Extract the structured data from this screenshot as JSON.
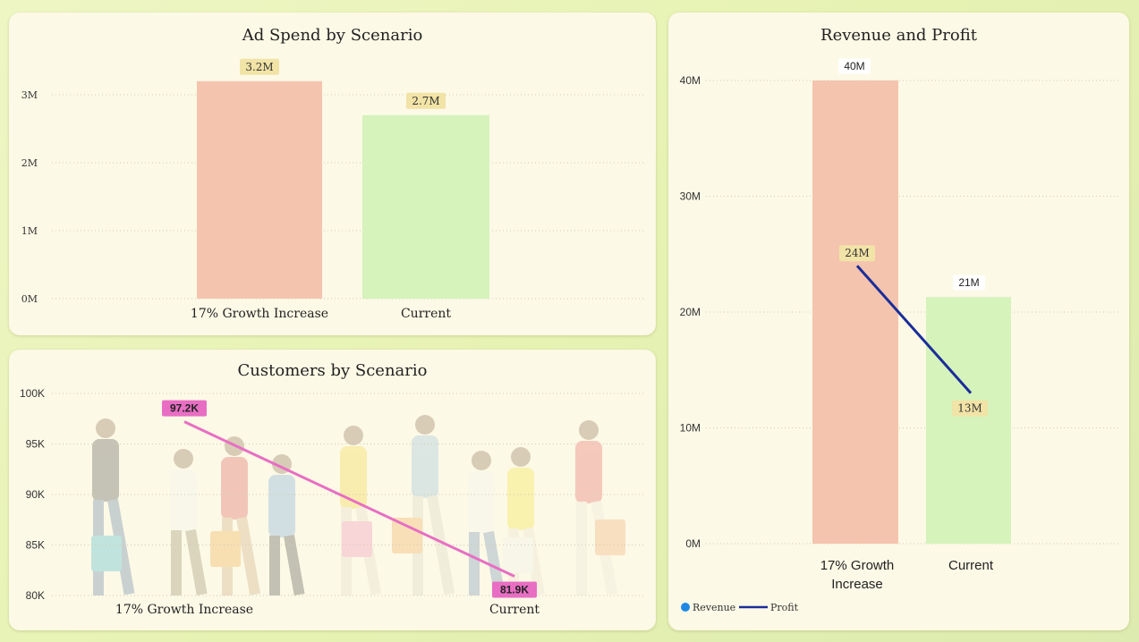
{
  "colors": {
    "bar_growth": "#f5c4ae",
    "bar_current": "#d5f3bb",
    "label_bg": "#f2e3a6",
    "customer_line": "#e86ec3",
    "profit_line": "#1a2d9a",
    "revenue_legend": "#1e88e5",
    "grid": "#cfcbb4"
  },
  "ad_spend": {
    "title": "Ad Spend by Scenario",
    "chart_data": {
      "type": "bar",
      "categories": [
        "17% Growth Increase",
        "Current"
      ],
      "values": [
        3.2,
        2.7
      ],
      "data_labels": [
        "3.2M",
        "2.7M"
      ],
      "yticks": [
        "0M",
        "1M",
        "2M",
        "3M"
      ],
      "ylim": [
        0,
        3.2
      ],
      "grid": true
    }
  },
  "customers": {
    "title": "Customers by Scenario",
    "chart_data": {
      "type": "line",
      "categories": [
        "17% Growth Increase",
        "Current"
      ],
      "values": [
        97.2,
        81.9
      ],
      "data_labels": [
        "97.2K",
        "81.9K"
      ],
      "yticks": [
        "80K",
        "85K",
        "90K",
        "95K",
        "100K"
      ],
      "ylim": [
        80,
        100
      ],
      "grid": true
    }
  },
  "revenue_profit": {
    "title": "Revenue and Profit",
    "chart_data": {
      "type": "bar",
      "categories": [
        [
          "17% Growth",
          "Increase"
        ],
        [
          "Current"
        ]
      ],
      "series": [
        {
          "name": "Revenue",
          "type": "bar",
          "values": [
            40,
            21.3
          ],
          "data_labels": [
            "40M",
            "21M"
          ]
        },
        {
          "name": "Profit",
          "type": "line",
          "values": [
            24,
            13
          ],
          "data_labels": [
            "24M",
            "13M"
          ]
        }
      ],
      "yticks": [
        "0M",
        "10M",
        "20M",
        "30M",
        "40M"
      ],
      "ylim": [
        0,
        40
      ],
      "legend": "bottom-left",
      "grid": true
    }
  }
}
